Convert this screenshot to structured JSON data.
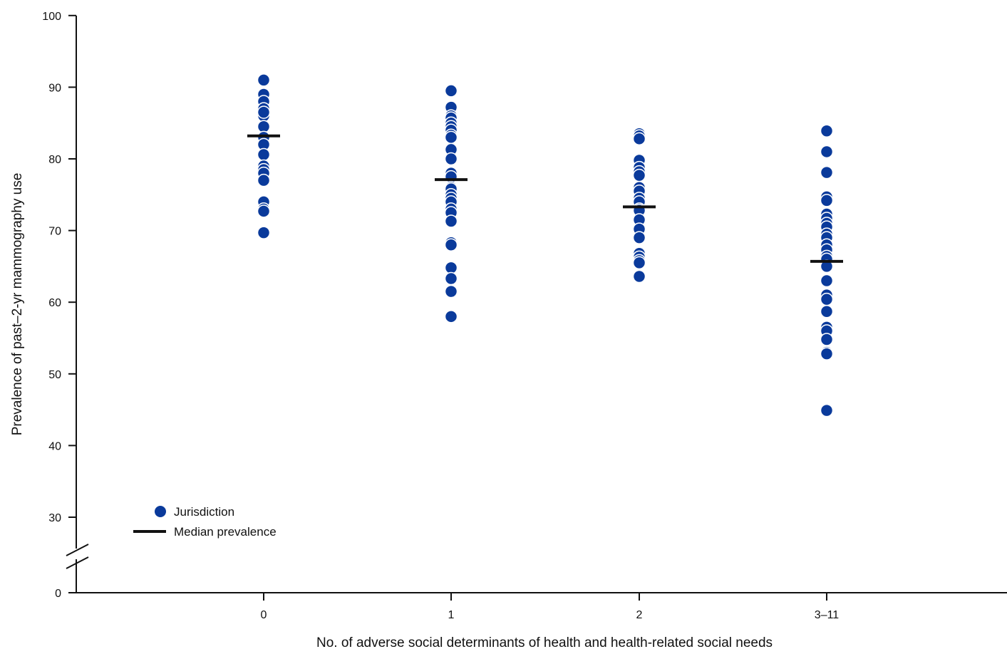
{
  "chart_data": {
    "type": "scatter",
    "title": "",
    "xlabel": "No. of adverse social determinants of health and health-related social needs",
    "ylabel": "Prevalence of past–2-yr mammography use",
    "categories": [
      "0",
      "1",
      "2",
      "3–11"
    ],
    "y_ticks": [
      0,
      30,
      40,
      50,
      60,
      70,
      80,
      90,
      100
    ],
    "y_tick_labels": [
      "0",
      "30",
      "40",
      "50",
      "60",
      "70",
      "80",
      "90",
      "100"
    ],
    "ylim": [
      0,
      100
    ],
    "y_axis_break": [
      0,
      30
    ],
    "grid": false,
    "legend_position": "bottom-left",
    "series": [
      {
        "name": "Jurisdiction",
        "values": [
          [
            91.0,
            89.0,
            88.0,
            87.0,
            86.0,
            86.5,
            84.5,
            83.0,
            82.0,
            80.6,
            79.0,
            78.5,
            78.0,
            77.0,
            74.0,
            73.0,
            72.7,
            69.7
          ],
          [
            89.5,
            87.2,
            86.0,
            85.7,
            85.0,
            84.5,
            84.0,
            83.3,
            83.0,
            81.3,
            80.0,
            78.0,
            77.5,
            76.0,
            75.8,
            75.0,
            74.5,
            74.0,
            73.0,
            72.5,
            71.3,
            68.3,
            68.0,
            64.8,
            63.3,
            61.5,
            58.0
          ],
          [
            83.5,
            83.2,
            82.8,
            79.8,
            78.8,
            78.2,
            77.7,
            76.0,
            75.5,
            74.5,
            74.0,
            73.0,
            72.8,
            71.5,
            70.2,
            69.0,
            66.8,
            66.3,
            65.8,
            65.5,
            63.6
          ],
          [
            83.9,
            81.0,
            78.1,
            74.7,
            74.2,
            72.3,
            71.7,
            71.0,
            70.5,
            69.5,
            69.0,
            68.0,
            67.3,
            66.4,
            66.0,
            65.0,
            63.0,
            61.0,
            60.4,
            58.7,
            56.5,
            56.0,
            54.8,
            53.0,
            52.8,
            44.9
          ]
        ],
        "color": "#0A3A9B"
      },
      {
        "name": "Median prevalence",
        "values": [
          83.2,
          77.1,
          73.3,
          65.7
        ],
        "color": "#111111"
      }
    ]
  }
}
